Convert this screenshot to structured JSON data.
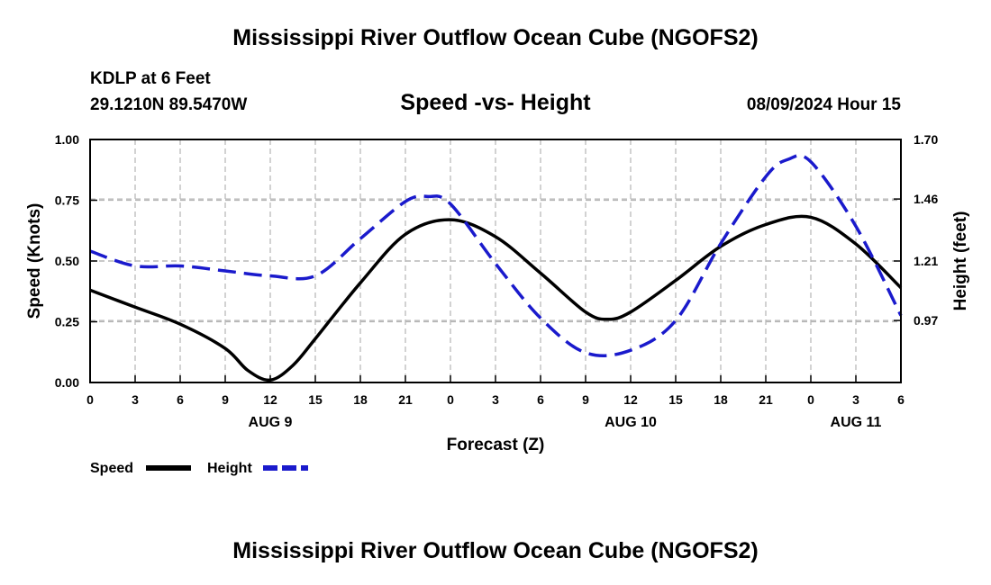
{
  "header": {
    "title": "Mississippi River Outflow Ocean Cube (NGOFS2)",
    "station": "KDLP at 6 Feet",
    "coordinates": "29.1210N  89.5470W",
    "subtitle": "Speed -vs- Height",
    "datetime": "08/09/2024 Hour 15"
  },
  "footer": {
    "title": "Mississippi River Outflow Ocean Cube (NGOFS2)"
  },
  "colors": {
    "speed": "#000000",
    "height": "#1a1acc",
    "grid": "#b4b4b4"
  },
  "chart_data": {
    "type": "line",
    "title": "Speed -vs- Height",
    "xlabel": "Forecast (Z)",
    "ylabel": "Speed (Knots)",
    "y2label": "Height (feet)",
    "xlim": [
      0,
      54
    ],
    "ylim": [
      0,
      1
    ],
    "y2lim": [
      0.72,
      1.7
    ],
    "x_tick_values": [
      0,
      3,
      6,
      9,
      12,
      15,
      18,
      21,
      24,
      27,
      30,
      33,
      36,
      39,
      42,
      45,
      48,
      51,
      54
    ],
    "x_tick_labels": [
      "0",
      "3",
      "6",
      "9",
      "12",
      "15",
      "18",
      "21",
      "0",
      "3",
      "6",
      "9",
      "12",
      "15",
      "18",
      "21",
      "0",
      "3",
      "6"
    ],
    "y_ticks": [
      "0.00",
      "0.25",
      "0.50",
      "0.75",
      "1.00"
    ],
    "y2_ticks": [
      "0.97",
      "1.21",
      "1.46",
      "1.70"
    ],
    "date_labels": [
      {
        "x": 12,
        "label": "AUG 9"
      },
      {
        "x": 36,
        "label": "AUG 10"
      },
      {
        "x": 51,
        "label": "AUG 11"
      }
    ],
    "grid": true,
    "legend_position": "bottom-left",
    "series": [
      {
        "name": "Speed",
        "axis": "left",
        "style": "solid",
        "x": [
          0,
          3,
          6,
          9,
          10.5,
          12,
          13.5,
          15,
          18,
          21,
          24,
          27,
          30,
          33,
          34.5,
          36,
          39,
          42,
          45,
          48,
          51,
          54
        ],
        "values": [
          0.38,
          0.31,
          0.24,
          0.14,
          0.05,
          0.01,
          0.07,
          0.18,
          0.41,
          0.61,
          0.67,
          0.6,
          0.45,
          0.29,
          0.26,
          0.29,
          0.42,
          0.56,
          0.65,
          0.68,
          0.57,
          0.39
        ]
      },
      {
        "name": "Height",
        "axis": "right",
        "style": "dashed",
        "x": [
          0,
          3,
          6,
          9,
          12,
          15,
          18,
          21,
          22.5,
          24,
          27,
          30,
          33,
          36,
          39,
          42,
          45,
          46.5,
          48,
          51,
          54
        ],
        "values": [
          1.25,
          1.19,
          1.19,
          1.17,
          1.15,
          1.15,
          1.3,
          1.45,
          1.47,
          1.44,
          1.2,
          0.98,
          0.84,
          0.85,
          0.97,
          1.28,
          1.55,
          1.62,
          1.61,
          1.35,
          0.99
        ]
      }
    ]
  }
}
